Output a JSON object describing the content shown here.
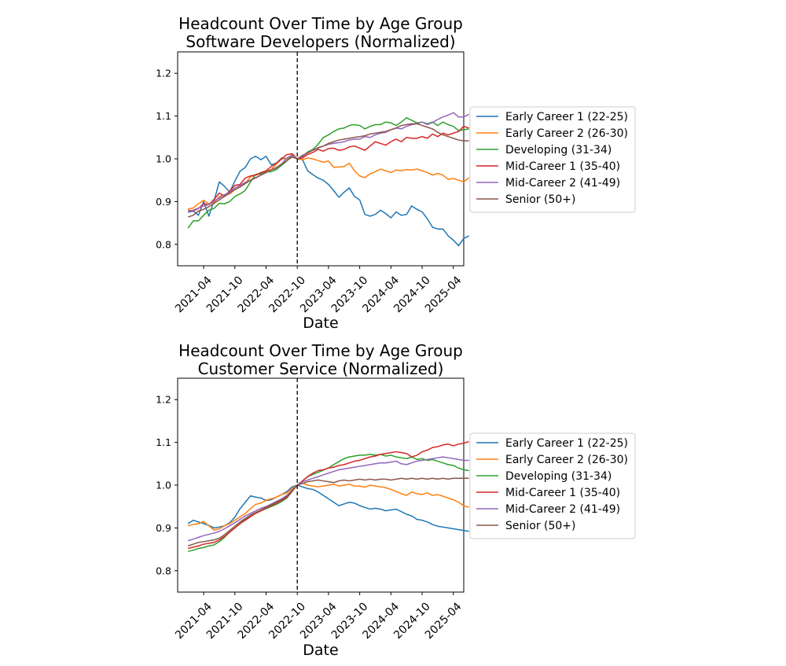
{
  "chart_data": [
    {
      "type": "line",
      "title": "Headcount Over Time by Age Group\nSoftware Developers (Normalized)",
      "xlabel": "Date",
      "ylabel": "",
      "xlim": [
        "2020-11",
        "2025-06"
      ],
      "ylim": [
        0.75,
        1.25
      ],
      "yticks": [
        0.8,
        0.9,
        1.0,
        1.1,
        1.2
      ],
      "xticks": [
        "2021-04",
        "2021-10",
        "2022-04",
        "2022-10",
        "2023-04",
        "2023-10",
        "2024-04",
        "2024-10",
        "2025-04"
      ],
      "vline": "2022-10",
      "legend": "right",
      "grid": false,
      "x_start": "2021-01",
      "x_end": "2025-05",
      "series": [
        {
          "name": "Early Career 1 (22-25)",
          "color": "#1f77b4",
          "values": [
            0.875,
            0.878,
            0.868,
            0.9,
            0.866,
            0.902,
            0.946,
            0.936,
            0.922,
            0.948,
            0.971,
            0.98,
            1.0,
            1.006,
            0.998,
            1.006,
            0.986,
            0.99,
            1.002,
            1.0,
            1.01,
            1.0,
            0.998,
            0.972,
            0.963,
            0.955,
            0.95,
            0.94,
            0.926,
            0.91,
            0.922,
            0.932,
            0.912,
            0.904,
            0.87,
            0.866,
            0.87,
            0.88,
            0.872,
            0.862,
            0.876,
            0.868,
            0.87,
            0.89,
            0.882,
            0.876,
            0.86,
            0.84,
            0.836,
            0.836,
            0.82,
            0.81,
            0.797,
            0.814,
            0.82
          ]
        },
        {
          "name": "Early Career 2 (26-30)",
          "color": "#ff7f0e",
          "values": [
            0.883,
            0.885,
            0.895,
            0.903,
            0.895,
            0.897,
            0.912,
            0.916,
            0.918,
            0.928,
            0.935,
            0.942,
            0.958,
            0.962,
            0.965,
            0.972,
            0.975,
            0.988,
            1.0,
            1.0,
            1.01,
            1.0,
            0.998,
            1.002,
            1.0,
            0.996,
            0.992,
            0.995,
            0.98,
            0.981,
            0.982,
            0.99,
            0.972,
            0.96,
            0.956,
            0.965,
            0.97,
            0.976,
            0.972,
            0.968,
            0.974,
            0.972,
            0.975,
            0.974,
            0.976,
            0.972,
            0.968,
            0.962,
            0.966,
            0.962,
            0.952,
            0.954,
            0.95,
            0.946,
            0.956
          ]
        },
        {
          "name": "Developing (31-34)",
          "color": "#2ca02c",
          "values": [
            0.838,
            0.855,
            0.855,
            0.868,
            0.88,
            0.884,
            0.896,
            0.895,
            0.9,
            0.912,
            0.918,
            0.926,
            0.946,
            0.964,
            0.965,
            0.97,
            0.97,
            0.975,
            0.985,
            0.995,
            1.008,
            1.0,
            1.005,
            1.016,
            1.022,
            1.034,
            1.05,
            1.056,
            1.064,
            1.07,
            1.072,
            1.078,
            1.08,
            1.078,
            1.07,
            1.076,
            1.08,
            1.08,
            1.086,
            1.084,
            1.078,
            1.086,
            1.096,
            1.09,
            1.084,
            1.086,
            1.082,
            1.086,
            1.078,
            1.086,
            1.08,
            1.076,
            1.066,
            1.068,
            1.07
          ]
        },
        {
          "name": "Mid-Career 1 (35-40)",
          "color": "#d62728",
          "values": [
            0.88,
            0.878,
            0.884,
            0.895,
            0.893,
            0.905,
            0.92,
            0.913,
            0.925,
            0.938,
            0.94,
            0.955,
            0.96,
            0.962,
            0.968,
            0.972,
            0.982,
            0.99,
            1.0,
            1.01,
            1.012,
            1.0,
            1.002,
            1.01,
            1.015,
            1.022,
            1.018,
            1.024,
            1.025,
            1.02,
            1.022,
            1.028,
            1.03,
            1.025,
            1.02,
            1.03,
            1.04,
            1.036,
            1.032,
            1.04,
            1.046,
            1.04,
            1.05,
            1.048,
            1.048,
            1.052,
            1.048,
            1.058,
            1.052,
            1.06,
            1.056,
            1.06,
            1.064,
            1.076,
            1.072
          ]
        },
        {
          "name": "Mid-Career 2 (41-49)",
          "color": "#9467bd",
          "values": [
            0.876,
            0.88,
            0.885,
            0.89,
            0.893,
            0.902,
            0.908,
            0.916,
            0.922,
            0.932,
            0.938,
            0.945,
            0.95,
            0.955,
            0.962,
            0.968,
            0.974,
            0.978,
            0.988,
            1.002,
            1.008,
            1.0,
            1.006,
            1.014,
            1.02,
            1.025,
            1.03,
            1.034,
            1.036,
            1.038,
            1.04,
            1.044,
            1.046,
            1.046,
            1.052,
            1.05,
            1.056,
            1.06,
            1.062,
            1.068,
            1.072,
            1.07,
            1.076,
            1.08,
            1.082,
            1.086,
            1.08,
            1.085,
            1.092,
            1.098,
            1.102,
            1.108,
            1.098,
            1.098,
            1.104
          ]
        },
        {
          "name": "Senior (50+)",
          "color": "#8c564b",
          "values": [
            0.864,
            0.868,
            0.878,
            0.882,
            0.888,
            0.896,
            0.904,
            0.912,
            0.92,
            0.928,
            0.934,
            0.942,
            0.95,
            0.956,
            0.962,
            0.968,
            0.974,
            0.98,
            0.988,
            0.996,
            1.004,
            1.0,
            1.008,
            1.014,
            1.02,
            1.026,
            1.03,
            1.036,
            1.04,
            1.044,
            1.046,
            1.048,
            1.05,
            1.052,
            1.054,
            1.058,
            1.06,
            1.062,
            1.064,
            1.068,
            1.072,
            1.078,
            1.08,
            1.082,
            1.082,
            1.078,
            1.074,
            1.07,
            1.062,
            1.056,
            1.052,
            1.048,
            1.044,
            1.042,
            1.042
          ]
        }
      ]
    },
    {
      "type": "line",
      "title": "Headcount Over Time by Age Group\nCustomer Service (Normalized)",
      "xlabel": "Date",
      "ylabel": "",
      "xlim": [
        "2020-11",
        "2025-06"
      ],
      "ylim": [
        0.75,
        1.25
      ],
      "yticks": [
        0.8,
        0.9,
        1.0,
        1.1,
        1.2
      ],
      "xticks": [
        "2021-04",
        "2021-10",
        "2022-04",
        "2022-10",
        "2023-04",
        "2023-10",
        "2024-04",
        "2024-10",
        "2025-04"
      ],
      "vline": "2022-10",
      "legend": "right",
      "grid": false,
      "x_start": "2021-01",
      "x_end": "2025-05",
      "series": [
        {
          "name": "Early Career 1 (22-25)",
          "color": "#1f77b4",
          "values": [
            0.91,
            0.918,
            0.914,
            0.91,
            0.906,
            0.9,
            0.902,
            0.905,
            0.912,
            0.925,
            0.945,
            0.96,
            0.975,
            0.972,
            0.97,
            0.964,
            0.966,
            0.972,
            0.978,
            0.985,
            0.996,
            1.0,
            0.996,
            0.992,
            0.99,
            0.984,
            0.976,
            0.968,
            0.96,
            0.952,
            0.956,
            0.96,
            0.958,
            0.952,
            0.948,
            0.944,
            0.946,
            0.944,
            0.94,
            0.942,
            0.944,
            0.938,
            0.932,
            0.928,
            0.92,
            0.918,
            0.914,
            0.908,
            0.904,
            0.902,
            0.9,
            0.898,
            0.896,
            0.894,
            0.892
          ]
        },
        {
          "name": "Early Career 2 (26-30)",
          "color": "#ff7f0e",
          "values": [
            0.905,
            0.908,
            0.91,
            0.915,
            0.905,
            0.895,
            0.898,
            0.905,
            0.91,
            0.918,
            0.926,
            0.934,
            0.945,
            0.955,
            0.958,
            0.965,
            0.968,
            0.972,
            0.978,
            0.982,
            0.992,
            1.0,
            1.005,
            1.0,
            0.998,
            0.996,
            0.998,
            1.0,
            1.002,
            0.998,
            1.0,
            1.002,
            0.998,
            0.998,
            0.995,
            1.0,
            0.998,
            0.996,
            0.994,
            0.99,
            0.985,
            0.98,
            0.976,
            0.984,
            0.98,
            0.978,
            0.982,
            0.976,
            0.978,
            0.974,
            0.97,
            0.966,
            0.96,
            0.952,
            0.948
          ]
        },
        {
          "name": "Developing (31-34)",
          "color": "#2ca02c",
          "values": [
            0.845,
            0.848,
            0.852,
            0.854,
            0.858,
            0.86,
            0.868,
            0.878,
            0.89,
            0.9,
            0.91,
            0.92,
            0.93,
            0.935,
            0.94,
            0.945,
            0.95,
            0.955,
            0.962,
            0.97,
            0.985,
            1.0,
            1.01,
            1.02,
            1.025,
            1.03,
            1.035,
            1.04,
            1.048,
            1.055,
            1.062,
            1.066,
            1.068,
            1.07,
            1.07,
            1.072,
            1.07,
            1.072,
            1.068,
            1.07,
            1.066,
            1.064,
            1.062,
            1.066,
            1.06,
            1.062,
            1.058,
            1.06,
            1.056,
            1.052,
            1.048,
            1.046,
            1.04,
            1.036,
            1.034
          ]
        },
        {
          "name": "Mid-Career 1 (35-40)",
          "color": "#d62728",
          "values": [
            0.852,
            0.855,
            0.858,
            0.862,
            0.864,
            0.866,
            0.872,
            0.88,
            0.89,
            0.9,
            0.91,
            0.918,
            0.926,
            0.934,
            0.94,
            0.946,
            0.952,
            0.958,
            0.964,
            0.972,
            0.986,
            1.0,
            1.01,
            1.02,
            1.028,
            1.034,
            1.036,
            1.04,
            1.042,
            1.046,
            1.048,
            1.052,
            1.056,
            1.058,
            1.062,
            1.066,
            1.068,
            1.072,
            1.074,
            1.076,
            1.078,
            1.076,
            1.074,
            1.066,
            1.07,
            1.078,
            1.082,
            1.088,
            1.09,
            1.094,
            1.096,
            1.092,
            1.096,
            1.098,
            1.102
          ]
        },
        {
          "name": "Mid-Career 2 (41-49)",
          "color": "#9467bd",
          "values": [
            0.87,
            0.874,
            0.878,
            0.882,
            0.885,
            0.888,
            0.892,
            0.898,
            0.905,
            0.912,
            0.92,
            0.928,
            0.934,
            0.94,
            0.946,
            0.95,
            0.956,
            0.962,
            0.968,
            0.976,
            0.988,
            1.0,
            1.008,
            1.012,
            1.016,
            1.02,
            1.024,
            1.028,
            1.032,
            1.036,
            1.038,
            1.04,
            1.042,
            1.044,
            1.046,
            1.048,
            1.05,
            1.052,
            1.052,
            1.054,
            1.056,
            1.05,
            1.048,
            1.052,
            1.056,
            1.058,
            1.06,
            1.062,
            1.064,
            1.066,
            1.064,
            1.062,
            1.06,
            1.058,
            1.058
          ]
        },
        {
          "name": "Senior (50+)",
          "color": "#8c564b",
          "values": [
            0.858,
            0.862,
            0.866,
            0.868,
            0.87,
            0.872,
            0.876,
            0.884,
            0.894,
            0.904,
            0.914,
            0.922,
            0.93,
            0.936,
            0.942,
            0.948,
            0.954,
            0.96,
            0.966,
            0.974,
            0.988,
            1.0,
            1.004,
            1.008,
            1.01,
            1.012,
            1.01,
            1.008,
            1.006,
            1.01,
            1.012,
            1.01,
            1.012,
            1.014,
            1.012,
            1.014,
            1.012,
            1.014,
            1.014,
            1.012,
            1.014,
            1.016,
            1.014,
            1.016,
            1.014,
            1.016,
            1.014,
            1.016,
            1.014,
            1.016,
            1.014,
            1.016,
            1.016,
            1.016,
            1.016
          ]
        }
      ]
    }
  ]
}
